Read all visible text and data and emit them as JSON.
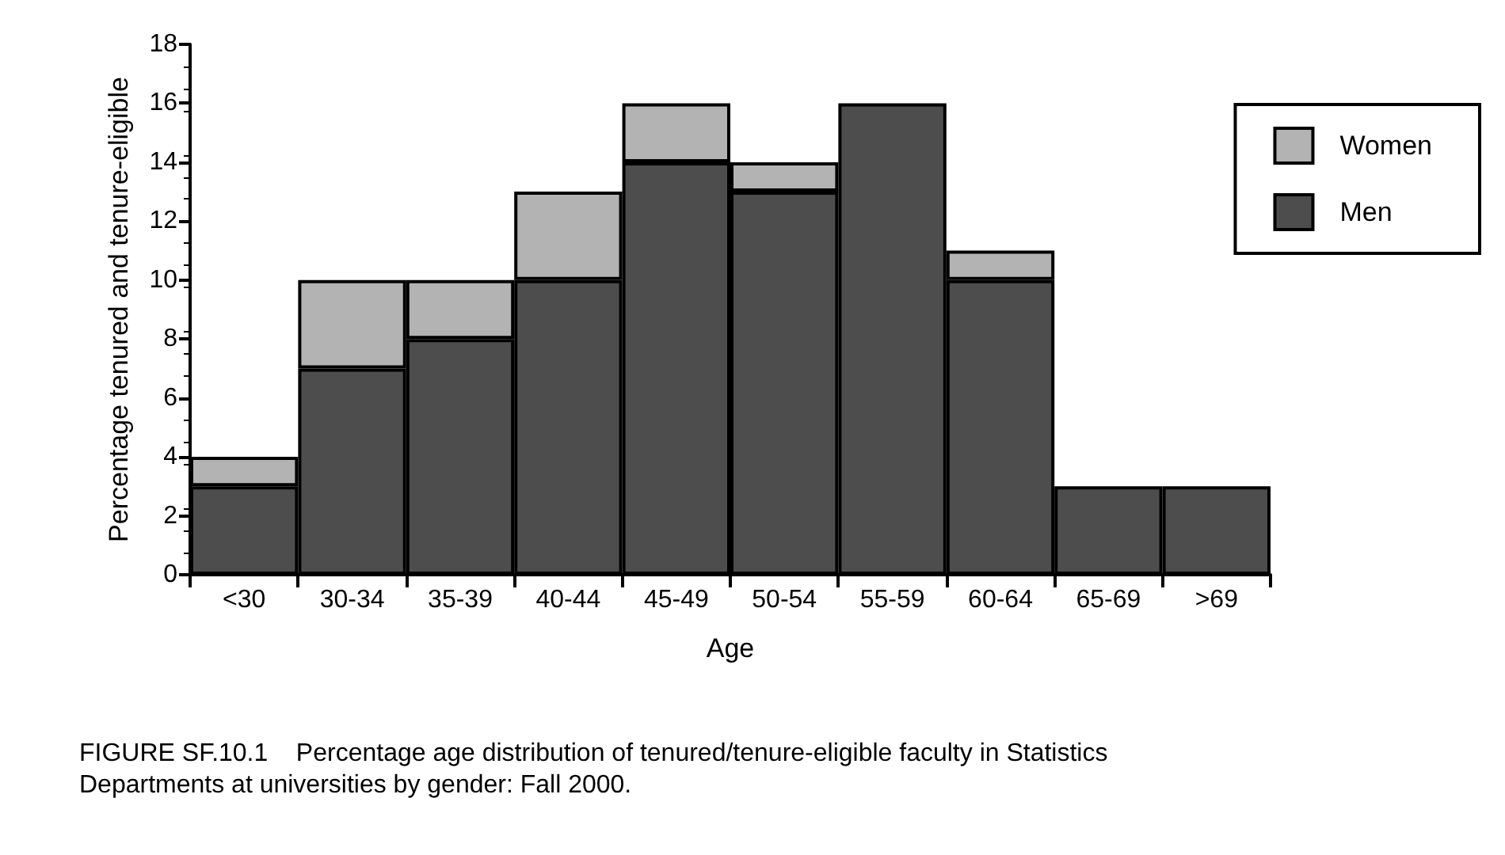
{
  "chart_data": {
    "type": "bar",
    "stacked": true,
    "xlabel": "Age",
    "ylabel": "Percentage tenured and tenure-eligible",
    "categories": [
      "<30",
      "30-34",
      "35-39",
      "40-44",
      "45-49",
      "50-54",
      "55-59",
      "60-64",
      "65-69",
      ">69"
    ],
    "series": [
      {
        "name": "Men",
        "color": "#4d4d4d",
        "values": [
          3,
          7,
          8,
          10,
          14,
          13,
          16,
          10,
          3,
          3
        ]
      },
      {
        "name": "Women",
        "color": "#b3b3b3",
        "values": [
          1,
          3,
          2,
          3,
          2,
          1,
          0,
          1,
          0,
          0
        ]
      }
    ],
    "ylim": [
      0,
      18
    ],
    "yticks": [
      0,
      2,
      4,
      6,
      8,
      10,
      12,
      14,
      16,
      18
    ],
    "grid": false,
    "legend": "top right",
    "annotations": [
      "FIGURE SF.10.1    Percentage age distribution of tenured/tenure-eligible faculty in Statistics Departments at universities by gender: Fall 2000."
    ]
  }
}
